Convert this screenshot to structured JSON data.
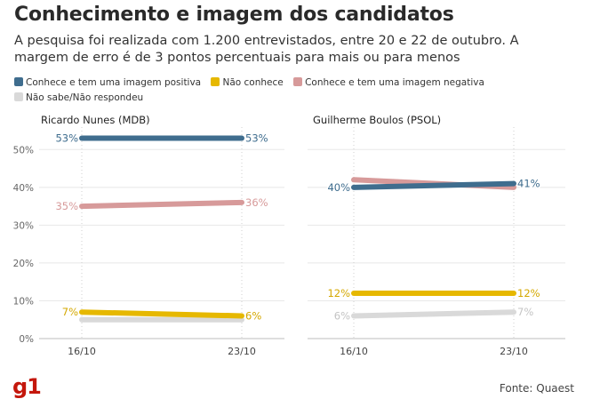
{
  "header": {
    "title": "Conhecimento e imagem dos candidatos",
    "subtitle": "A pesquisa foi realizada com 1.200 entrevistados, entre 20 e 22 de outubro. A margem de erro é de 3 pontos percentuais para mais ou para menos"
  },
  "legend": [
    {
      "label": "Conhece e tem uma imagem positiva",
      "color": "#3f6d8e"
    },
    {
      "label": "Não conhece",
      "color": "#e6b800"
    },
    {
      "label": "Conhece e tem uma imagem negativa",
      "color": "#d79a9a"
    },
    {
      "label": "Não sabe/Não respondeu",
      "color": "#d9d9d9"
    }
  ],
  "footer": {
    "logo": "g1",
    "source": "Fonte: Quaest"
  },
  "chart_data": [
    {
      "type": "line",
      "title": "Ricardo Nunes (MDB)",
      "x": [
        "16/10",
        "23/10"
      ],
      "ylim": [
        0,
        55
      ],
      "yticks": [
        0,
        10,
        20,
        30,
        40,
        50
      ],
      "ytick_labels": [
        "0%",
        "10%",
        "20%",
        "30%",
        "40%",
        "50%"
      ],
      "grid": true,
      "series": [
        {
          "name": "Conhece e tem uma imagem positiva",
          "values": [
            53,
            53
          ],
          "labels": [
            "53%",
            "53%"
          ],
          "color": "#3f6d8e"
        },
        {
          "name": "Não conhece",
          "values": [
            7,
            6
          ],
          "labels": [
            "7%",
            "6%"
          ],
          "color": "#e6b800"
        },
        {
          "name": "Conhece e tem uma imagem negativa",
          "values": [
            35,
            36
          ],
          "labels": [
            "35%",
            "36%"
          ],
          "color": "#d79a9a"
        },
        {
          "name": "Não sabe/Não respondeu",
          "values": [
            5,
            5
          ],
          "labels": [
            "",
            ""
          ],
          "color": "#d9d9d9"
        }
      ]
    },
    {
      "type": "line",
      "title": "Guilherme Boulos (PSOL)",
      "x": [
        "16/10",
        "23/10"
      ],
      "ylim": [
        0,
        55
      ],
      "yticks": [
        0,
        10,
        20,
        30,
        40,
        50
      ],
      "grid": true,
      "series": [
        {
          "name": "Conhece e tem uma imagem positiva",
          "values": [
            40,
            41
          ],
          "labels": [
            "40%",
            "41%"
          ],
          "color": "#3f6d8e"
        },
        {
          "name": "Não conhece",
          "values": [
            12,
            12
          ],
          "labels": [
            "12%",
            "12%"
          ],
          "color": "#e6b800"
        },
        {
          "name": "Conhece e tem uma imagem negativa",
          "values": [
            42,
            40
          ],
          "labels": [
            "",
            ""
          ],
          "color": "#d79a9a"
        },
        {
          "name": "Não sabe/Não respondeu",
          "values": [
            6,
            7
          ],
          "labels": [
            "6%",
            "7%"
          ],
          "color": "#d9d9d9"
        }
      ]
    }
  ]
}
